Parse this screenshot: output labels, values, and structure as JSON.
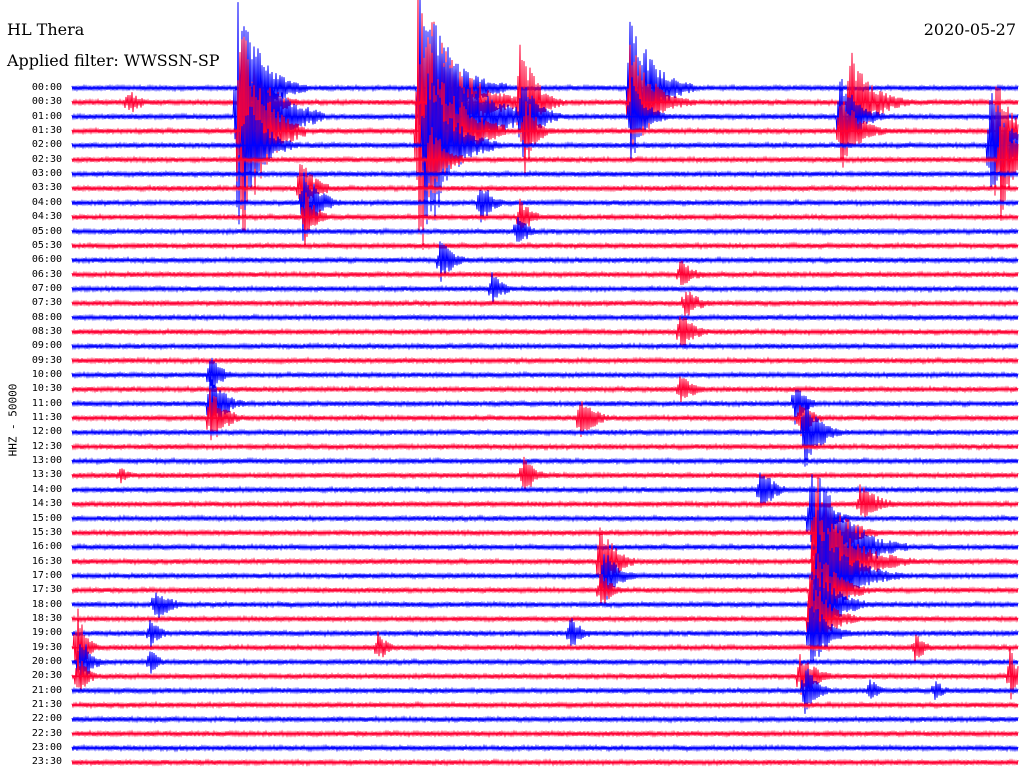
{
  "header": {
    "station": "HL Thera",
    "date": "2020-05-27",
    "filter_label": "Applied filter: WWSSN-SP"
  },
  "channel_label": "HHZ - 50000",
  "trace_colors": [
    "#0000ff",
    "#ff0033"
  ],
  "time_labels": [
    "00:00",
    "00:30",
    "01:00",
    "01:30",
    "02:00",
    "02:30",
    "03:00",
    "03:30",
    "04:00",
    "04:30",
    "05:00",
    "05:30",
    "06:00",
    "06:30",
    "07:00",
    "07:30",
    "08:00",
    "08:30",
    "09:00",
    "09:30",
    "10:00",
    "10:30",
    "11:00",
    "11:30",
    "12:00",
    "12:30",
    "13:00",
    "13:30",
    "14:00",
    "14:30",
    "15:00",
    "15:30",
    "16:00",
    "16:30",
    "17:00",
    "17:30",
    "18:00",
    "18:30",
    "19:00",
    "19:30",
    "20:00",
    "20:30",
    "21:00",
    "21:30",
    "22:00",
    "22:30",
    "23:00",
    "23:30"
  ]
}
